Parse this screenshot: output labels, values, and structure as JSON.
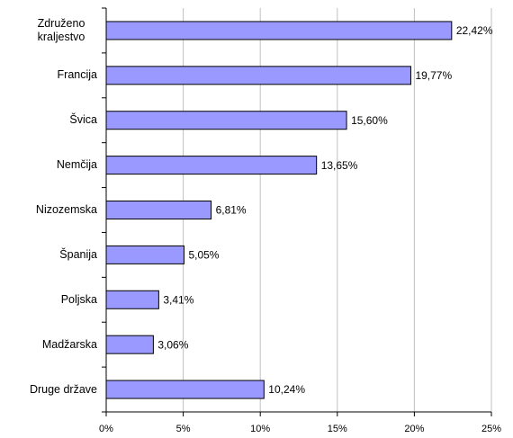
{
  "chart_data": {
    "type": "bar",
    "orientation": "horizontal",
    "categories": [
      "Združeno kraljestvo",
      "Francija",
      "Švica",
      "Nemčija",
      "Nizozemska",
      "Španija",
      "Poljska",
      "Madžarska",
      "Druge države"
    ],
    "values": [
      22.42,
      19.77,
      15.6,
      13.65,
      6.81,
      5.05,
      3.41,
      3.06,
      10.24
    ],
    "value_labels": [
      "22,42%",
      "19,77%",
      "15,60%",
      "13,65%",
      "6,81%",
      "5,05%",
      "3,41%",
      "3,06%",
      "10,24%"
    ],
    "color": "#9999ff",
    "xlim": [
      0,
      25
    ],
    "xticks": [
      {
        "value": 0,
        "label": "0%"
      },
      {
        "value": 5,
        "label": "5%"
      },
      {
        "value": 10,
        "label": "10%"
      },
      {
        "value": 15,
        "label": "15%"
      },
      {
        "value": 20,
        "label": "20%"
      },
      {
        "value": 25,
        "label": "25%"
      }
    ],
    "grid": true
  }
}
